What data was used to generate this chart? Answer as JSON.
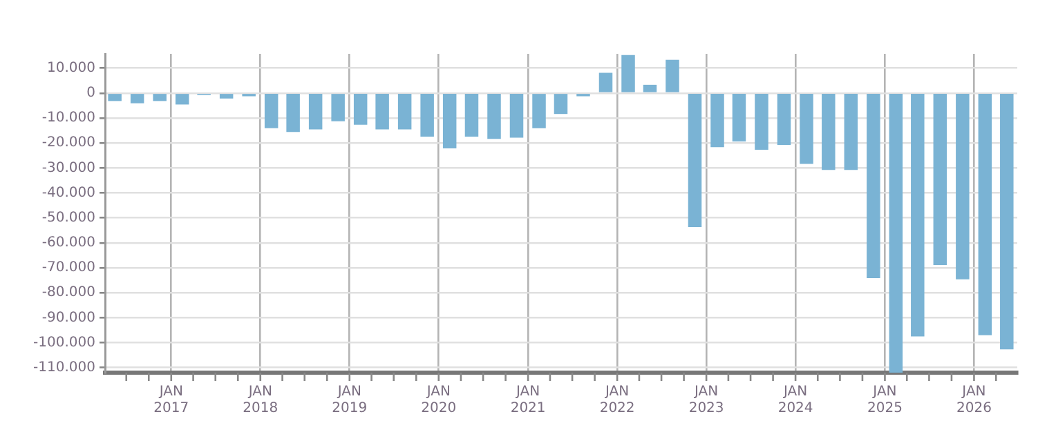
{
  "chart_data": {
    "type": "bar",
    "x": [
      "2016-05-15",
      "2016-08-15",
      "2016-11-15",
      "2017-02-15",
      "2017-05-15",
      "2017-08-15",
      "2017-11-15",
      "2018-02-15",
      "2018-05-15",
      "2018-08-15",
      "2018-11-15",
      "2019-02-15",
      "2019-05-15",
      "2019-08-15",
      "2019-11-15",
      "2020-02-15",
      "2020-05-15",
      "2020-08-15",
      "2020-11-15",
      "2021-02-15",
      "2021-05-15",
      "2021-08-15",
      "2021-11-15",
      "2022-02-15",
      "2022-05-15",
      "2022-08-15",
      "2022-11-15",
      "2023-02-15",
      "2023-05-15",
      "2023-08-15",
      "2023-11-15",
      "2024-02-15",
      "2024-05-15",
      "2024-08-15",
      "2024-11-15",
      "2025-02-15",
      "2025-05-15",
      "2025-08-15",
      "2025-11-15",
      "2026-02-15",
      "2026-05-15"
    ],
    "values": [
      -3200,
      -4100,
      -3200,
      -4600,
      -800,
      -2200,
      -1300,
      -14100,
      -15600,
      -14600,
      -11300,
      -12700,
      -14600,
      -14600,
      -17500,
      -22200,
      -17500,
      -18400,
      -17900,
      -14100,
      -8400,
      -1300,
      8100,
      15200,
      3300,
      13300,
      -53700,
      -21700,
      -19400,
      -22700,
      -20800,
      -28400,
      -30800,
      -30800,
      -74100,
      -112000,
      -97500,
      -68900,
      -74600,
      -97000,
      -102700
    ],
    "color": "#7ab3d4",
    "xlim": [
      "2016-04-05",
      "2026-06-27"
    ],
    "xticks": [
      {
        "value": "2016-07-01",
        "label": null
      },
      {
        "value": "2016-10-01",
        "label": null
      },
      {
        "value": "2017-01-01",
        "label": "JAN 2017"
      },
      {
        "value": "2017-04-01",
        "label": null
      },
      {
        "value": "2017-07-01",
        "label": null
      },
      {
        "value": "2017-10-01",
        "label": null
      },
      {
        "value": "2018-01-01",
        "label": "JAN 2018"
      },
      {
        "value": "2018-04-01",
        "label": null
      },
      {
        "value": "2018-07-01",
        "label": null
      },
      {
        "value": "2018-10-01",
        "label": null
      },
      {
        "value": "2019-01-01",
        "label": "JAN 2019"
      },
      {
        "value": "2019-04-01",
        "label": null
      },
      {
        "value": "2019-07-01",
        "label": null
      },
      {
        "value": "2019-10-01",
        "label": null
      },
      {
        "value": "2020-01-01",
        "label": "JAN 2020"
      },
      {
        "value": "2020-04-01",
        "label": null
      },
      {
        "value": "2020-07-01",
        "label": null
      },
      {
        "value": "2020-10-01",
        "label": null
      },
      {
        "value": "2021-01-01",
        "label": "JAN 2021"
      },
      {
        "value": "2021-04-01",
        "label": null
      },
      {
        "value": "2021-07-01",
        "label": null
      },
      {
        "value": "2021-10-01",
        "label": null
      },
      {
        "value": "2022-01-01",
        "label": "JAN 2022"
      },
      {
        "value": "2022-04-01",
        "label": null
      },
      {
        "value": "2022-07-01",
        "label": null
      },
      {
        "value": "2022-10-01",
        "label": null
      },
      {
        "value": "2023-01-01",
        "label": "JAN 2023"
      },
      {
        "value": "2023-04-01",
        "label": null
      },
      {
        "value": "2023-07-01",
        "label": null
      },
      {
        "value": "2023-10-01",
        "label": null
      },
      {
        "value": "2024-01-01",
        "label": "JAN 2024"
      },
      {
        "value": "2024-04-01",
        "label": null
      },
      {
        "value": "2024-07-01",
        "label": null
      },
      {
        "value": "2024-10-01",
        "label": null
      },
      {
        "value": "2025-01-01",
        "label": "JAN 2025"
      },
      {
        "value": "2025-04-01",
        "label": null
      },
      {
        "value": "2025-07-01",
        "label": null
      },
      {
        "value": "2025-10-01",
        "label": null
      },
      {
        "value": "2026-01-01",
        "label": "JAN 2026"
      },
      {
        "value": "2026-04-01",
        "label": null
      }
    ],
    "ylim": [
      -112000,
      15700
    ],
    "yticks": [
      {
        "value": 10000,
        "label": "10.000"
      },
      0,
      {
        "value": -10000,
        "label": "-10.000"
      },
      {
        "value": -20000,
        "label": "-20.000"
      },
      {
        "value": -30000,
        "label": "-30.000"
      },
      {
        "value": -40000,
        "label": "-40.000"
      },
      {
        "value": -50000,
        "label": "-50.000"
      },
      {
        "value": -60000,
        "label": "-60.000"
      },
      {
        "value": -70000,
        "label": "-70.000"
      },
      {
        "value": -80000,
        "label": "-80.000"
      },
      {
        "value": -90000,
        "label": "-90.000"
      },
      {
        "value": -100000,
        "label": "-100.000"
      },
      {
        "value": -110000,
        "label": "-110.000"
      }
    ],
    "grid": true,
    "legend": false
  }
}
